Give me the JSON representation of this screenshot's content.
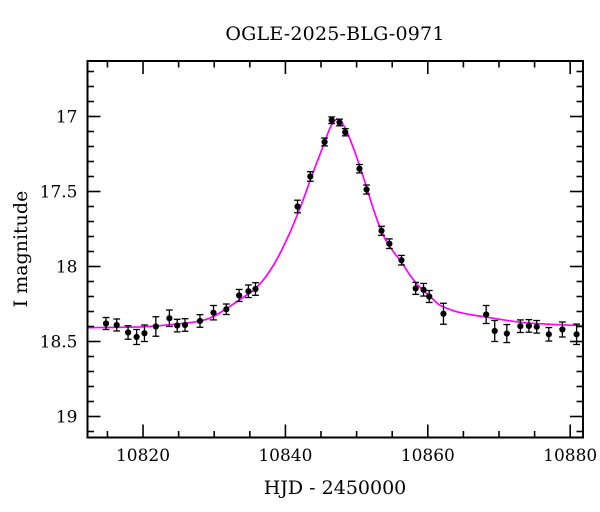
{
  "chart_data": {
    "type": "scatter",
    "title": "OGLE-2025-BLG-0971",
    "xlabel": "HJD - 2450000",
    "ylabel": "I magnitude",
    "grid": false,
    "legend": "none",
    "x_axis": {
      "lim": [
        10812.2,
        10881.8
      ],
      "major_ticks": [
        10820,
        10840,
        10860,
        10880
      ],
      "tick_labels": [
        "10820",
        "10840",
        "10860",
        "10880"
      ],
      "minor_step": 5
    },
    "y_axis": {
      "lim": [
        16.63,
        19.14
      ],
      "magnitude_axis_faint_down": true,
      "major_ticks": [
        17,
        17.5,
        18,
        18.5,
        19
      ],
      "tick_labels": [
        "17",
        "17.5",
        "18",
        "18.5",
        "19"
      ],
      "minor_step": 0.1
    },
    "colors": {
      "background": "#ffffff",
      "axes": "#000000",
      "data_points": "#000000",
      "model_curve": "#ff00ff"
    },
    "series": [
      {
        "name": "I-band photometry (mag with error bars)",
        "type": "scatter-errorbar",
        "points": [
          [
            10814.8,
            18.38,
            0.04
          ],
          [
            10816.3,
            18.39,
            0.04
          ],
          [
            10817.9,
            18.44,
            0.045
          ],
          [
            10819.1,
            18.47,
            0.05
          ],
          [
            10820.2,
            18.445,
            0.055
          ],
          [
            10821.8,
            18.4,
            0.065
          ],
          [
            10823.7,
            18.345,
            0.055
          ],
          [
            10824.8,
            18.394,
            0.042
          ],
          [
            10825.9,
            18.39,
            0.042
          ],
          [
            10828.0,
            18.363,
            0.042
          ],
          [
            10829.9,
            18.308,
            0.048
          ],
          [
            10831.7,
            18.285,
            0.035
          ],
          [
            10833.5,
            18.193,
            0.04
          ],
          [
            10834.8,
            18.165,
            0.042
          ],
          [
            10835.8,
            18.15,
            0.042
          ],
          [
            10841.7,
            17.6,
            0.042
          ],
          [
            10843.5,
            17.4,
            0.032
          ],
          [
            10845.5,
            17.17,
            0.026
          ],
          [
            10846.5,
            17.025,
            0.022
          ],
          [
            10847.6,
            17.04,
            0.022
          ],
          [
            10848.4,
            17.105,
            0.024
          ],
          [
            10850.4,
            17.348,
            0.028
          ],
          [
            10851.4,
            17.487,
            0.03
          ],
          [
            10853.5,
            17.762,
            0.03
          ],
          [
            10854.6,
            17.848,
            0.032
          ],
          [
            10856.3,
            17.958,
            0.032
          ],
          [
            10858.3,
            18.146,
            0.04
          ],
          [
            10859.4,
            18.155,
            0.042
          ],
          [
            10860.2,
            18.2,
            0.04
          ],
          [
            10862.2,
            18.315,
            0.07
          ],
          [
            10868.2,
            18.32,
            0.06
          ],
          [
            10869.4,
            18.43,
            0.07
          ],
          [
            10871.1,
            18.447,
            0.06
          ],
          [
            10873.0,
            18.398,
            0.042
          ],
          [
            10874.2,
            18.396,
            0.042
          ],
          [
            10875.3,
            18.402,
            0.042
          ],
          [
            10877.0,
            18.452,
            0.045
          ],
          [
            10878.9,
            18.42,
            0.05
          ],
          [
            10880.9,
            18.452,
            0.068
          ]
        ]
      },
      {
        "name": "microlensing model fit",
        "type": "line",
        "points": [
          [
            10812.2,
            18.408
          ],
          [
            10816.8,
            18.405
          ],
          [
            10820.0,
            18.402
          ],
          [
            10823.8,
            18.388
          ],
          [
            10827.9,
            18.365
          ],
          [
            10830.1,
            18.328
          ],
          [
            10832.2,
            18.265
          ],
          [
            10834.1,
            18.205
          ],
          [
            10835.7,
            18.151
          ],
          [
            10837.3,
            18.064
          ],
          [
            10838.8,
            17.951
          ],
          [
            10840.4,
            17.797
          ],
          [
            10842.1,
            17.603
          ],
          [
            10843.7,
            17.396
          ],
          [
            10845.2,
            17.209
          ],
          [
            10846.3,
            17.072
          ],
          [
            10847.0,
            17.025
          ],
          [
            10847.4,
            17.018
          ],
          [
            10848.0,
            17.045
          ],
          [
            10848.8,
            17.12
          ],
          [
            10849.9,
            17.256
          ],
          [
            10851.2,
            17.443
          ],
          [
            10852.5,
            17.637
          ],
          [
            10853.6,
            17.777
          ],
          [
            10854.7,
            17.87
          ],
          [
            10856.3,
            17.971
          ],
          [
            10857.5,
            18.058
          ],
          [
            10858.9,
            18.138
          ],
          [
            10860.3,
            18.198
          ],
          [
            10861.7,
            18.258
          ],
          [
            10863.8,
            18.298
          ],
          [
            10865.9,
            18.32
          ],
          [
            10868.3,
            18.338
          ],
          [
            10870.9,
            18.358
          ],
          [
            10873.7,
            18.375
          ],
          [
            10877.2,
            18.385
          ],
          [
            10881.8,
            18.395
          ]
        ]
      }
    ]
  }
}
